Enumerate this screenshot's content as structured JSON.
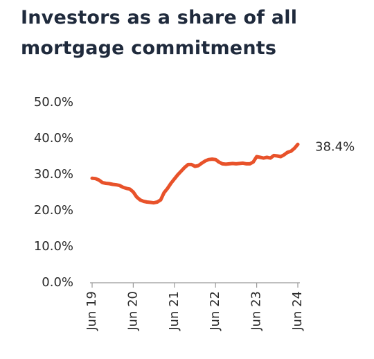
{
  "chart_data": {
    "type": "line",
    "title": "Investors as a share of all mortgage commitments",
    "categories": [
      "Jun 19",
      null,
      null,
      null,
      null,
      null,
      null,
      null,
      null,
      null,
      null,
      null,
      "Jun 20",
      null,
      null,
      null,
      null,
      null,
      null,
      null,
      null,
      null,
      null,
      null,
      "Jun 21",
      null,
      null,
      null,
      null,
      null,
      null,
      null,
      null,
      null,
      null,
      null,
      "Jun 22",
      null,
      null,
      null,
      null,
      null,
      null,
      null,
      null,
      null,
      null,
      null,
      "Jun 23",
      null,
      null,
      null,
      null,
      null,
      null,
      null,
      null,
      null,
      null,
      null,
      "Jun 24"
    ],
    "series": [
      {
        "color": "#e8522a",
        "values": [
          29.0,
          28.9,
          28.5,
          27.8,
          27.6,
          27.5,
          27.3,
          27.2,
          27.0,
          26.5,
          26.2,
          26.0,
          25.2,
          23.8,
          23.0,
          22.6,
          22.4,
          22.3,
          22.2,
          22.4,
          23.0,
          25.0,
          26.2,
          27.6,
          28.8,
          30.0,
          31.0,
          32.0,
          32.8,
          32.8,
          32.3,
          32.5,
          33.2,
          33.8,
          34.2,
          34.3,
          34.2,
          33.5,
          33.0,
          32.9,
          33.0,
          33.1,
          33.0,
          33.1,
          33.2,
          33.0,
          33.0,
          33.5,
          35.0,
          34.8,
          34.6,
          34.8,
          34.6,
          35.3,
          35.2,
          35.0,
          35.5,
          36.2,
          36.5,
          37.3,
          38.4
        ],
        "value_labels": [
          null,
          null,
          null,
          null,
          null,
          null,
          null,
          null,
          null,
          null,
          null,
          null,
          null,
          null,
          null,
          null,
          null,
          null,
          null,
          null,
          null,
          null,
          null,
          null,
          null,
          null,
          null,
          null,
          null,
          null,
          null,
          null,
          null,
          null,
          null,
          null,
          null,
          null,
          null,
          null,
          null,
          null,
          null,
          null,
          null,
          null,
          null,
          null,
          null,
          null,
          null,
          null,
          null,
          null,
          null,
          null,
          null,
          null,
          null,
          null,
          "38.4%"
        ]
      }
    ],
    "ylim": [
      0,
      50
    ],
    "yticks": [
      {
        "value": 0,
        "label": "0.0%"
      },
      {
        "value": 10,
        "label": "10.0%"
      },
      {
        "value": 20,
        "label": "20.0%"
      },
      {
        "value": 30,
        "label": "30.0%"
      },
      {
        "value": 40,
        "label": "40.0%"
      },
      {
        "value": 50,
        "label": "50.0%"
      }
    ],
    "grid": false
  }
}
